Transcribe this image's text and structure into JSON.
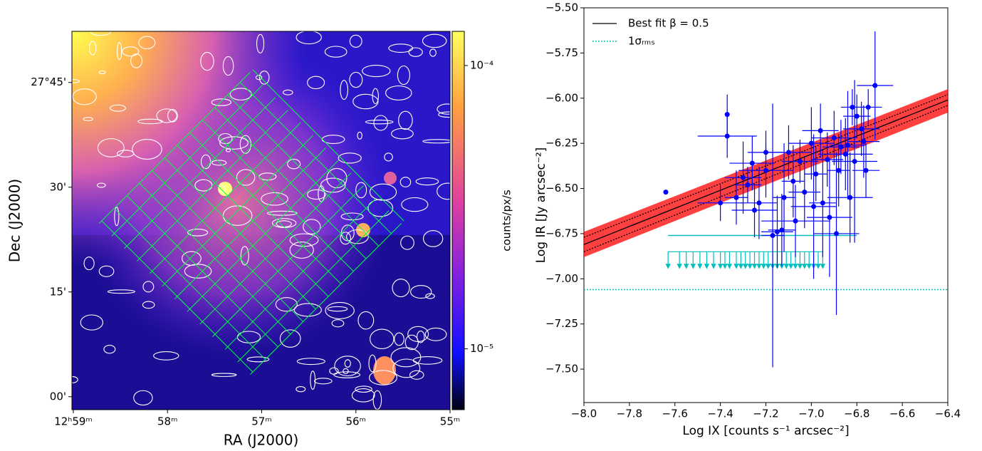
{
  "chart_data": [
    {
      "type": "image",
      "xlabel": "RA (J2000)",
      "ylabel": "Dec (J2000)",
      "xlim": [
        59.015,
        55.0
      ],
      "ylim": [
        26.969,
        27.872
      ],
      "xticks": [
        {
          "value": 59,
          "label": "12ʰ59ᵐ"
        },
        {
          "value": 58,
          "label": "58ᵐ"
        },
        {
          "value": 57,
          "label": "57ᵐ"
        },
        {
          "value": 56,
          "label": "56ᵐ"
        },
        {
          "value": 55,
          "label": "55ᵐ"
        }
      ],
      "yticks": [
        {
          "value": 27.75,
          "label": "27°45'"
        },
        {
          "value": 27.5,
          "label": "30'"
        },
        {
          "value": 27.25,
          "label": "15'"
        },
        {
          "value": 27.0,
          "label": "00'"
        }
      ],
      "colorbar": {
        "label": "counts/px/s",
        "scale": "log",
        "lim": [
          6.1e-06,
          0.000132
        ],
        "ticks": [
          {
            "value": 0.0001,
            "label": "10⁻⁴"
          },
          {
            "value": 1e-05,
            "label": "10⁻⁵"
          }
        ]
      }
    },
    {
      "type": "scatter",
      "xlabel": "Log IX [counts s⁻¹ arcsec⁻²]",
      "ylabel": "Log IR [Jy arcsec⁻²]",
      "xlim": [
        -8.0,
        -6.4
      ],
      "ylim": [
        -7.685,
        -5.5
      ],
      "xticks": [
        {
          "value": -8.0,
          "label": "−8.0"
        },
        {
          "value": -7.8,
          "label": "−7.8"
        },
        {
          "value": -7.6,
          "label": "−7.6"
        },
        {
          "value": -7.4,
          "label": "−7.4"
        },
        {
          "value": -7.2,
          "label": "−7.2"
        },
        {
          "value": -7.0,
          "label": "−7.0"
        },
        {
          "value": -6.8,
          "label": "−6.8"
        },
        {
          "value": -6.6,
          "label": "−6.6"
        },
        {
          "value": -6.4,
          "label": "−6.4"
        }
      ],
      "yticks": [
        {
          "value": -5.5,
          "label": "−5.50"
        },
        {
          "value": -5.75,
          "label": "−5.75"
        },
        {
          "value": -6.0,
          "label": "−6.00"
        },
        {
          "value": -6.25,
          "label": "−6.25"
        },
        {
          "value": -6.5,
          "label": "−6.50"
        },
        {
          "value": -6.75,
          "label": "−6.75"
        },
        {
          "value": -7.0,
          "label": "−7.00"
        },
        {
          "value": -7.25,
          "label": "−7.25"
        },
        {
          "value": -7.5,
          "label": "−7.50"
        }
      ],
      "fit": {
        "name": "Best fit β = 0.5",
        "color": "#000000",
        "x": [
          -8.0,
          -6.4
        ],
        "y": [
          -6.81,
          -6.01
        ]
      },
      "fit_samples": {
        "color": "#ff0000",
        "upper": [
          -6.74,
          -5.95
        ],
        "lower": [
          -6.88,
          -6.08
        ]
      },
      "confidence": {
        "color": "#000000",
        "upper": [
          -6.77,
          -5.98
        ],
        "lower": [
          -6.85,
          -6.04
        ]
      },
      "rms": {
        "name": "1σᵣₘₛ",
        "color": "#00bfbf",
        "y": -7.06
      },
      "points": {
        "color": "#0000ff",
        "x": [
          -7.64,
          -7.37,
          -7.37,
          -7.33,
          -7.3,
          -7.28,
          -7.25,
          -7.23,
          -7.2,
          -7.17,
          -7.15,
          -7.13,
          -7.12,
          -7.1,
          -7.08,
          -7.05,
          -7.03,
          -7.0,
          -6.99,
          -6.98,
          -6.96,
          -6.95,
          -6.93,
          -6.92,
          -6.9,
          -6.88,
          -6.87,
          -6.85,
          -6.84,
          -6.83,
          -6.82,
          -6.81,
          -6.8,
          -6.78,
          -6.77,
          -6.76,
          -6.75,
          -6.72,
          -7.4,
          -7.26,
          -7.2,
          -7.07,
          -6.89
        ],
        "y": [
          -6.52,
          -6.09,
          -6.21,
          -6.55,
          -6.44,
          -6.48,
          -6.62,
          -6.58,
          -6.4,
          -6.76,
          -6.74,
          -6.73,
          -6.55,
          -6.3,
          -6.46,
          -6.35,
          -6.52,
          -6.25,
          -6.6,
          -6.42,
          -6.18,
          -6.58,
          -6.34,
          -6.66,
          -6.22,
          -6.4,
          -6.27,
          -6.31,
          -6.26,
          -6.55,
          -6.05,
          -6.35,
          -6.1,
          -6.17,
          -6.24,
          -6.4,
          -6.05,
          -5.93,
          -6.58,
          -6.36,
          -6.3,
          -6.68,
          -6.75
        ],
        "xerr": [
          0,
          0,
          0.13,
          0.05,
          0.08,
          0.06,
          0.1,
          0.08,
          0.12,
          0.05,
          0.07,
          0.06,
          0.05,
          0.1,
          0.05,
          0.08,
          0.07,
          0.1,
          0.1,
          0.05,
          0.08,
          0.06,
          0.07,
          0.1,
          0.1,
          0.05,
          0.08,
          0.12,
          0.08,
          0.1,
          0.05,
          0.1,
          0.06,
          0.08,
          0.07,
          0.06,
          0.06,
          0.08,
          0.1,
          0.1,
          0.08,
          0.15,
          0.1
        ],
        "yerr": [
          0,
          0.11,
          0.12,
          0.15,
          0.2,
          0.1,
          0.15,
          0.2,
          0.15,
          0.73,
          0.2,
          0.2,
          0.3,
          0.15,
          0.2,
          0.12,
          0.2,
          0.2,
          0.4,
          0.15,
          0.15,
          0.3,
          0.15,
          0.33,
          0.15,
          0.2,
          0.15,
          0.2,
          0.3,
          0.25,
          0.1,
          0.45,
          0.12,
          0.15,
          0.2,
          0.15,
          0.1,
          0.3,
          0.1,
          0.15,
          0.12,
          0.2,
          0.45
        ]
      },
      "limit_line": {
        "color": "#00bfbf",
        "x": [
          -7.63,
          -6.8
        ],
        "y": [
          -6.76,
          -6.76
        ]
      },
      "upper_limits": {
        "color": "#00bfbf",
        "y": -6.85,
        "x": [
          -7.63,
          -7.58,
          -7.55,
          -7.52,
          -7.49,
          -7.46,
          -7.43,
          -7.4,
          -7.38,
          -7.36,
          -7.33,
          -7.31,
          -7.29,
          -7.27,
          -7.25,
          -7.23,
          -7.21,
          -7.19,
          -7.17,
          -7.15,
          -7.13,
          -7.11,
          -7.09,
          -7.07,
          -7.05,
          -7.03,
          -7.01,
          -6.99,
          -6.97,
          -6.95
        ]
      }
    }
  ]
}
